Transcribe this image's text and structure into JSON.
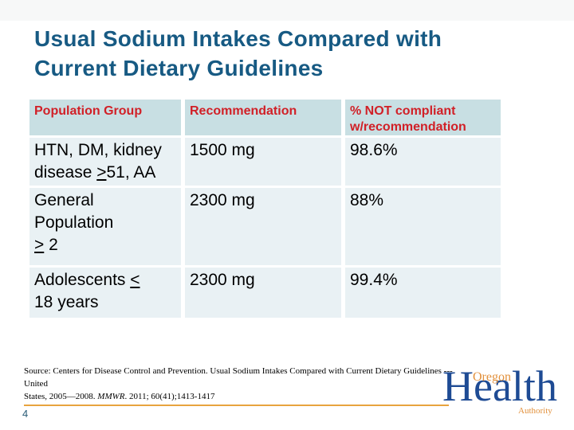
{
  "colors": {
    "title_blue": "#175a83",
    "header_bg": "#c8dfe3",
    "header_text_red": "#d12027",
    "row_bg": "#e9f1f4",
    "accent_line_orange": "#e8a43e",
    "logo_blue": "#1e4b94",
    "logo_orange": "#e2913d"
  },
  "title": {
    "line1": "Usual Sodium Intakes Compared with",
    "line2": "Current Dietary Guidelines"
  },
  "table": {
    "headers": [
      "Population Group",
      "Recommendation",
      "% NOT compliant<br>w/recommendation"
    ],
    "rows": [
      {
        "population": "HTN, DM, kidney<br>disease <u>&gt;</u>51, AA",
        "recommendation": "1500 mg",
        "not_compliant": "98.6%"
      },
      {
        "population": "General<br>Population<br><u>&gt;</u> 2",
        "recommendation": "2300 mg",
        "not_compliant": "88%"
      },
      {
        "population": "Adolescents <u>&lt;</u><br>18 years",
        "recommendation": "2300 mg",
        "not_compliant": "99.4%"
      }
    ]
  },
  "footer": {
    "source": "Source: Centers for Disease Control and Prevention. Usual Sodium Intakes Compared with Current Dietary Guidelines --- United<br>States, 2005—2008. <i>MMWR</i>. 2011; 60(41);1413-1417",
    "page_number": "4"
  },
  "logo": {
    "oregon": "Oregon",
    "health": "Health",
    "authority": "Authority"
  }
}
